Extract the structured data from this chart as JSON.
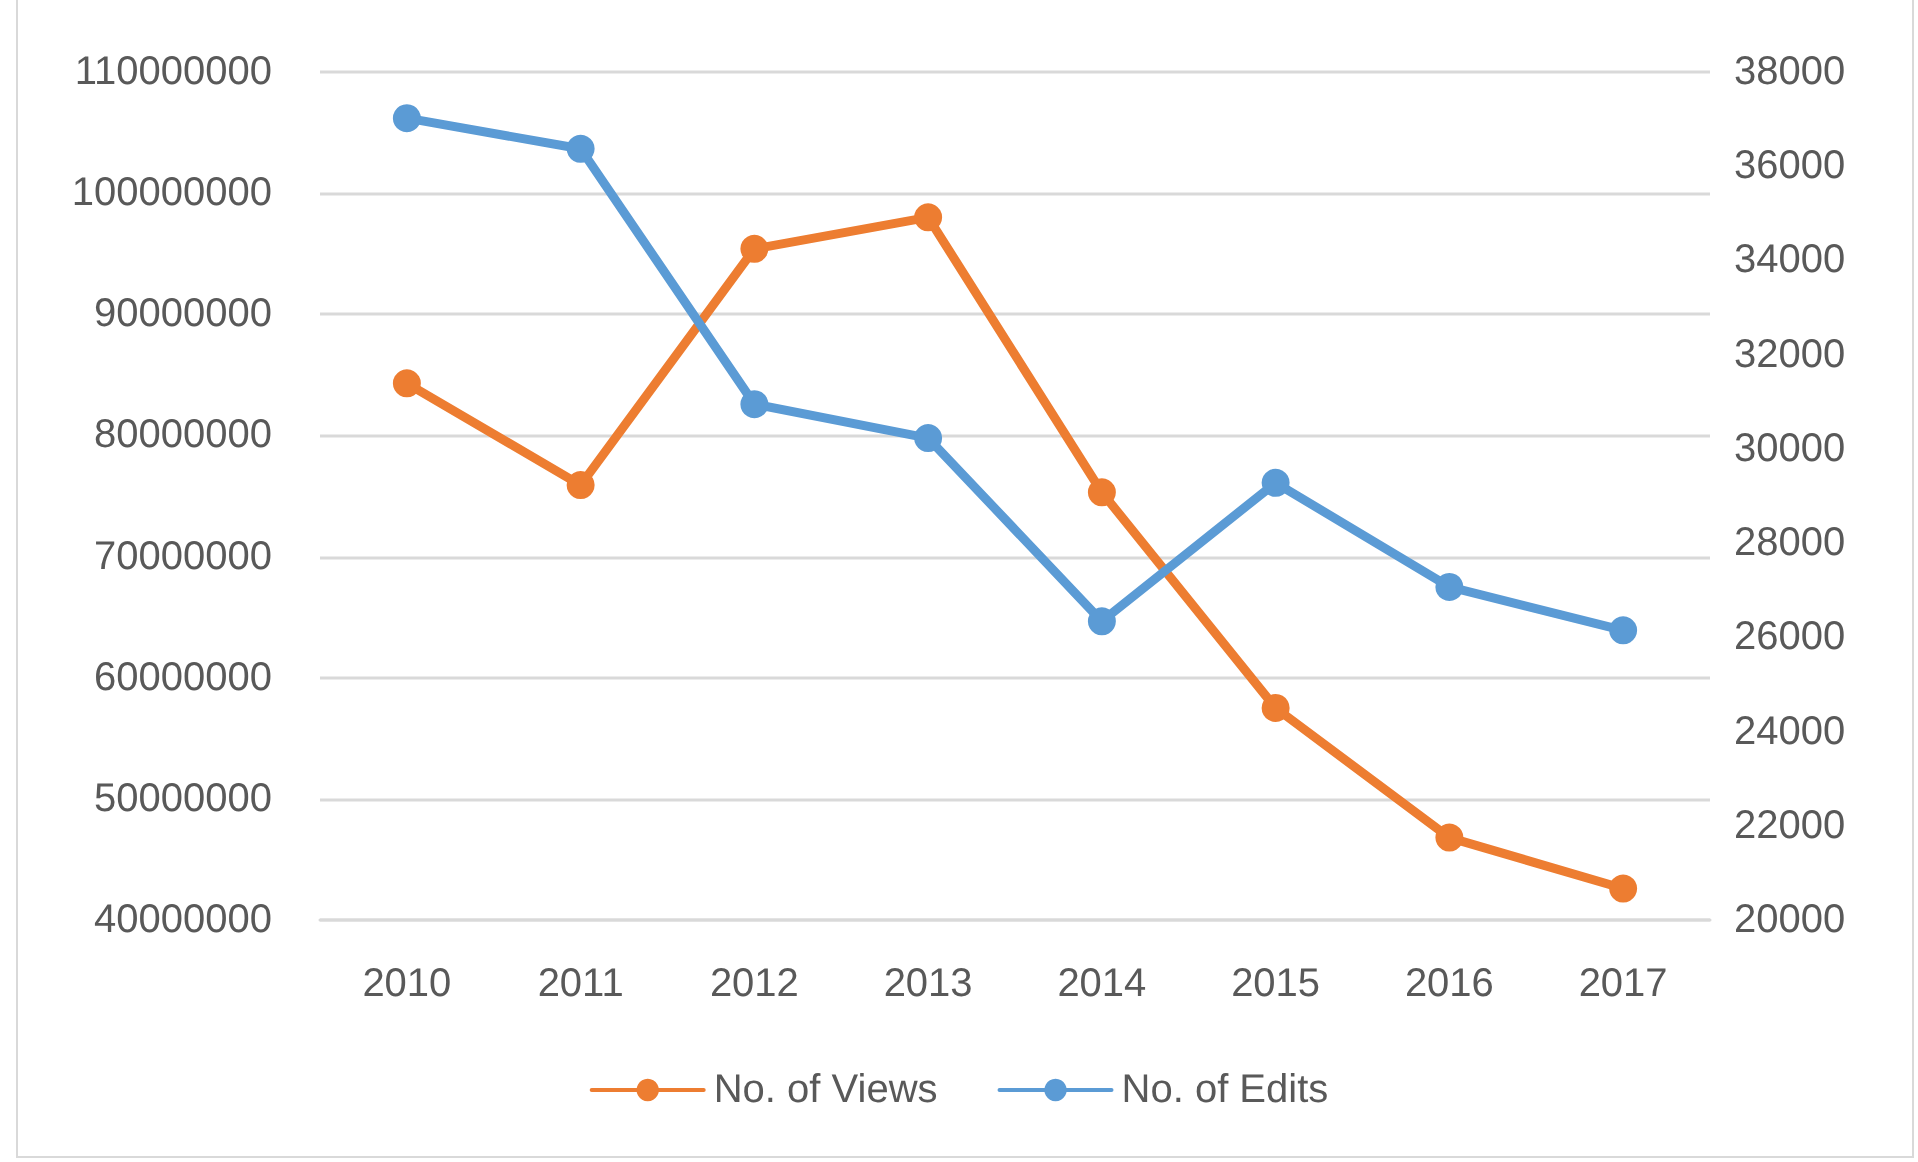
{
  "chart_data": {
    "type": "line",
    "categories": [
      "2010",
      "2011",
      "2012",
      "2013",
      "2014",
      "2015",
      "2016",
      "2017"
    ],
    "series": [
      {
        "name": "No. of Views",
        "color": "#ed7d31",
        "values": [
          84300000,
          75900000,
          95400000,
          98000000,
          75300000,
          57500000,
          46800000,
          42600000
        ]
      },
      {
        "name": "No. of Edits",
        "color": "#5b9bd5",
        "axis": "y2",
        "values": [
          37020,
          36370,
          30950,
          30230,
          26340,
          29280,
          27070,
          26150
        ]
      }
    ],
    "ylim": [
      40000000,
      110000000
    ],
    "yticks": [
      40000000,
      50000000,
      60000000,
      70000000,
      80000000,
      90000000,
      100000000,
      110000000
    ],
    "y2lim": [
      20000,
      38000
    ],
    "y2ticks": [
      20000,
      22000,
      24000,
      26000,
      28000,
      30000,
      32000,
      34000,
      36000,
      38000
    ],
    "grid": "y",
    "legend": "bottom",
    "marker": "circle",
    "line_style": "solid"
  }
}
